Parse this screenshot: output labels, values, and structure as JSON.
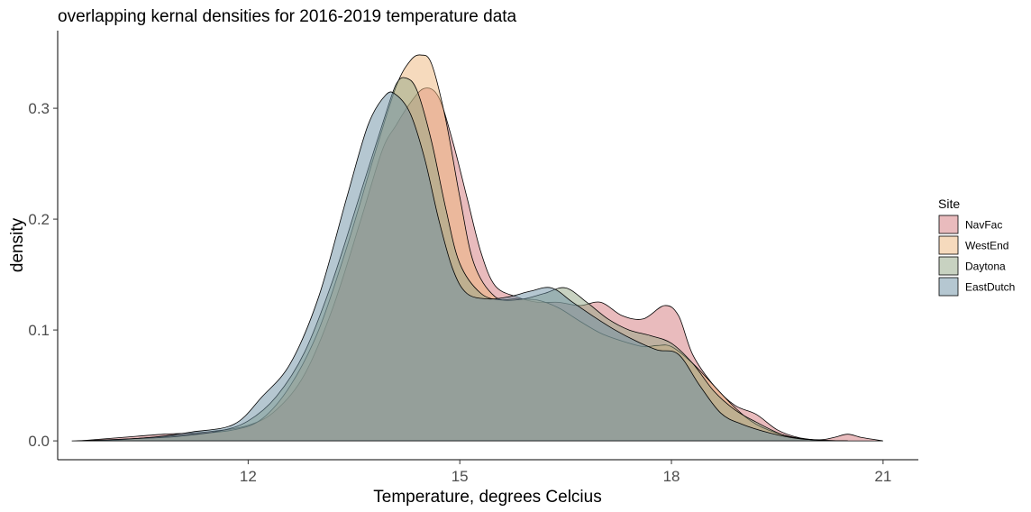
{
  "chart_data": {
    "type": "area",
    "title": "overlapping kernal densities for 2016-2019 temperature data",
    "xlabel": "Temperature, degrees Celcius",
    "ylabel": "density",
    "xlim": [
      9.3,
      21.5
    ],
    "ylim": [
      -0.017,
      0.37
    ],
    "x_ticks": [
      12,
      15,
      18,
      21
    ],
    "y_ticks": [
      0.0,
      0.1,
      0.2,
      0.3
    ],
    "x_tick_labels": [
      "12",
      "15",
      "18",
      "21"
    ],
    "y_tick_labels": [
      "0.0",
      "0.1",
      "0.2",
      "0.3"
    ],
    "grid": false,
    "legend": {
      "title": "Site",
      "position": "right"
    },
    "series": [
      {
        "name": "NavFac",
        "color": "#d3787c",
        "points": [
          [
            9.6,
            0
          ],
          [
            10.2,
            0.003
          ],
          [
            10.8,
            0.006
          ],
          [
            11.4,
            0.008
          ],
          [
            12.0,
            0.014
          ],
          [
            12.4,
            0.028
          ],
          [
            12.8,
            0.06
          ],
          [
            13.2,
            0.12
          ],
          [
            13.6,
            0.2
          ],
          [
            13.9,
            0.262
          ],
          [
            14.1,
            0.285
          ],
          [
            14.3,
            0.305
          ],
          [
            14.5,
            0.318
          ],
          [
            14.7,
            0.31
          ],
          [
            14.9,
            0.27
          ],
          [
            15.1,
            0.22
          ],
          [
            15.3,
            0.17
          ],
          [
            15.5,
            0.14
          ],
          [
            15.8,
            0.13
          ],
          [
            16.1,
            0.125
          ],
          [
            16.4,
            0.125
          ],
          [
            16.7,
            0.122
          ],
          [
            17.0,
            0.125
          ],
          [
            17.3,
            0.113
          ],
          [
            17.6,
            0.11
          ],
          [
            17.9,
            0.122
          ],
          [
            18.1,
            0.113
          ],
          [
            18.3,
            0.078
          ],
          [
            18.6,
            0.05
          ],
          [
            18.9,
            0.032
          ],
          [
            19.2,
            0.024
          ],
          [
            19.5,
            0.01
          ],
          [
            19.8,
            0.003
          ],
          [
            20.1,
            0.001
          ],
          [
            20.3,
            0.003
          ],
          [
            20.5,
            0.006
          ],
          [
            20.7,
            0.003
          ],
          [
            21.0,
            0
          ]
        ]
      },
      {
        "name": "WestEnd",
        "color": "#eeb57c",
        "points": [
          [
            10.0,
            0
          ],
          [
            10.6,
            0.003
          ],
          [
            11.2,
            0.006
          ],
          [
            11.8,
            0.01
          ],
          [
            12.2,
            0.02
          ],
          [
            12.6,
            0.05
          ],
          [
            13.0,
            0.1
          ],
          [
            13.4,
            0.175
          ],
          [
            13.8,
            0.26
          ],
          [
            14.1,
            0.32
          ],
          [
            14.3,
            0.343
          ],
          [
            14.45,
            0.348
          ],
          [
            14.6,
            0.34
          ],
          [
            14.8,
            0.29
          ],
          [
            15.0,
            0.22
          ],
          [
            15.2,
            0.16
          ],
          [
            15.5,
            0.13
          ],
          [
            15.8,
            0.128
          ],
          [
            16.1,
            0.127
          ],
          [
            16.4,
            0.12
          ],
          [
            16.7,
            0.108
          ],
          [
            17.0,
            0.097
          ],
          [
            17.3,
            0.09
          ],
          [
            17.6,
            0.085
          ],
          [
            17.8,
            0.086
          ],
          [
            18.0,
            0.085
          ],
          [
            18.3,
            0.07
          ],
          [
            18.6,
            0.05
          ],
          [
            18.9,
            0.03
          ],
          [
            19.2,
            0.015
          ],
          [
            19.6,
            0.005
          ],
          [
            20.0,
            0.001
          ],
          [
            20.5,
            0
          ]
        ]
      },
      {
        "name": "Daytona",
        "color": "#91a583",
        "points": [
          [
            9.8,
            0
          ],
          [
            10.4,
            0.002
          ],
          [
            11.0,
            0.004
          ],
          [
            11.6,
            0.009
          ],
          [
            12.0,
            0.018
          ],
          [
            12.4,
            0.04
          ],
          [
            12.8,
            0.08
          ],
          [
            13.2,
            0.145
          ],
          [
            13.6,
            0.225
          ],
          [
            13.9,
            0.285
          ],
          [
            14.1,
            0.322
          ],
          [
            14.25,
            0.327
          ],
          [
            14.4,
            0.315
          ],
          [
            14.6,
            0.27
          ],
          [
            14.8,
            0.21
          ],
          [
            15.0,
            0.16
          ],
          [
            15.3,
            0.133
          ],
          [
            15.6,
            0.127
          ],
          [
            15.9,
            0.128
          ],
          [
            16.2,
            0.133
          ],
          [
            16.5,
            0.138
          ],
          [
            16.8,
            0.125
          ],
          [
            17.1,
            0.11
          ],
          [
            17.4,
            0.1
          ],
          [
            17.7,
            0.095
          ],
          [
            18.0,
            0.088
          ],
          [
            18.3,
            0.07
          ],
          [
            18.6,
            0.045
          ],
          [
            18.9,
            0.028
          ],
          [
            19.2,
            0.017
          ],
          [
            19.6,
            0.005
          ],
          [
            20.0,
            0.001
          ],
          [
            20.5,
            0
          ]
        ]
      },
      {
        "name": "EastDutch",
        "color": "#6b8fa3",
        "points": [
          [
            9.5,
            0
          ],
          [
            10.0,
            0.001
          ],
          [
            10.6,
            0.003
          ],
          [
            11.2,
            0.008
          ],
          [
            11.8,
            0.015
          ],
          [
            12.2,
            0.04
          ],
          [
            12.6,
            0.07
          ],
          [
            13.0,
            0.13
          ],
          [
            13.4,
            0.22
          ],
          [
            13.7,
            0.285
          ],
          [
            13.95,
            0.312
          ],
          [
            14.1,
            0.312
          ],
          [
            14.3,
            0.295
          ],
          [
            14.5,
            0.255
          ],
          [
            14.7,
            0.2
          ],
          [
            14.9,
            0.155
          ],
          [
            15.1,
            0.133
          ],
          [
            15.4,
            0.128
          ],
          [
            15.7,
            0.13
          ],
          [
            16.0,
            0.135
          ],
          [
            16.3,
            0.138
          ],
          [
            16.6,
            0.125
          ],
          [
            16.9,
            0.112
          ],
          [
            17.2,
            0.1
          ],
          [
            17.5,
            0.09
          ],
          [
            17.8,
            0.082
          ],
          [
            18.1,
            0.078
          ],
          [
            18.4,
            0.05
          ],
          [
            18.7,
            0.025
          ],
          [
            19.0,
            0.015
          ],
          [
            19.4,
            0.007
          ],
          [
            19.8,
            0.002
          ],
          [
            20.3,
            0
          ]
        ]
      }
    ]
  }
}
